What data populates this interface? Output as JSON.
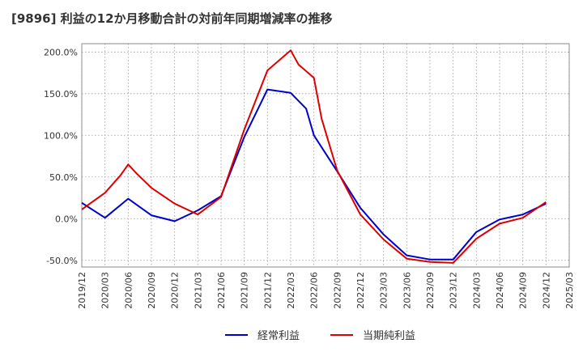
{
  "title": "[9896]  利益の12か月移動合計の対前年同期増減率の推移",
  "chart_data": {
    "type": "line",
    "title": "[9896]  利益の12か月移動合計の対前年同期増減率の推移",
    "xlabel": "",
    "ylabel": "",
    "x_ticks": [
      "2019/12",
      "2020/03",
      "2020/06",
      "2020/09",
      "2020/12",
      "2021/03",
      "2021/06",
      "2021/09",
      "2021/12",
      "2022/03",
      "2022/06",
      "2022/09",
      "2022/12",
      "2023/03",
      "2023/06",
      "2023/09",
      "2023/12",
      "2024/03",
      "2024/06",
      "2024/09",
      "2024/12",
      "2025/03"
    ],
    "y_ticks": [
      "200.0%",
      "150.0%",
      "100.0%",
      "50.0%",
      "0.0%",
      "-50.0%"
    ],
    "y_tick_values": [
      200,
      150,
      100,
      50,
      0,
      -50
    ],
    "ylim": [
      -58,
      210
    ],
    "xlim": [
      "2019/12",
      "2025/03"
    ],
    "grid": true,
    "legend_position": "bottom",
    "series": [
      {
        "name": "経常利益",
        "color": "#0000cc",
        "points": [
          [
            "2019/12",
            19
          ],
          [
            "2020/03",
            1
          ],
          [
            "2020/06",
            24
          ],
          [
            "2020/09",
            4
          ],
          [
            "2020/12",
            -3
          ],
          [
            "2021/03",
            10
          ],
          [
            "2021/06",
            27
          ],
          [
            "2021/09",
            98
          ],
          [
            "2021/12",
            155
          ],
          [
            "2022/03",
            151
          ],
          [
            "2022/05",
            132
          ],
          [
            "2022/06",
            100
          ],
          [
            "2022/09",
            57
          ],
          [
            "2022/12",
            13
          ],
          [
            "2023/03",
            -19
          ],
          [
            "2023/06",
            -44
          ],
          [
            "2023/09",
            -49
          ],
          [
            "2023/12",
            -49
          ],
          [
            "2024/03",
            -16
          ],
          [
            "2024/06",
            -1
          ],
          [
            "2024/09",
            5
          ],
          [
            "2024/12",
            18
          ]
        ]
      },
      {
        "name": "当期純利益",
        "color": "#dd0000",
        "points": [
          [
            "2019/12",
            11
          ],
          [
            "2020/03",
            31
          ],
          [
            "2020/05",
            52
          ],
          [
            "2020/06",
            65
          ],
          [
            "2020/07",
            55
          ],
          [
            "2020/09",
            37
          ],
          [
            "2020/12",
            18
          ],
          [
            "2021/03",
            5
          ],
          [
            "2021/06",
            26
          ],
          [
            "2021/09",
            107
          ],
          [
            "2021/12",
            178
          ],
          [
            "2022/03",
            202
          ],
          [
            "2022/04",
            185
          ],
          [
            "2022/06",
            169
          ],
          [
            "2022/07",
            120
          ],
          [
            "2022/09",
            58
          ],
          [
            "2022/12",
            5
          ],
          [
            "2023/03",
            -25
          ],
          [
            "2023/06",
            -48
          ],
          [
            "2023/09",
            -52
          ],
          [
            "2023/12",
            -53
          ],
          [
            "2024/03",
            -24
          ],
          [
            "2024/06",
            -6
          ],
          [
            "2024/09",
            1
          ],
          [
            "2024/12",
            20
          ]
        ]
      }
    ]
  }
}
